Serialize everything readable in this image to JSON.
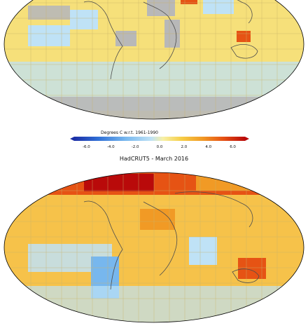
{
  "colorbar": {
    "title": "Degrees C w.r.t. 1961-1990",
    "ticks": [
      "-6.0",
      "-4.0",
      "-2.0",
      "0.0",
      "2.0",
      "4.0",
      "6.0"
    ],
    "tick_values": [
      -6,
      -4,
      -2,
      0,
      2,
      4,
      6
    ],
    "range": [
      -7,
      7
    ],
    "colors": [
      "#1c2fa6",
      "#2f6fd6",
      "#77b7ee",
      "#bfe2f6",
      "#f7f0a6",
      "#f6cd46",
      "#f19a25",
      "#e65314",
      "#b90a0a"
    ]
  },
  "top_map": {
    "caption": "",
    "land_color": "#8d8d8d",
    "missing_color": "#b8b8b8",
    "dominant_anomaly_color": "#f6e07a"
  },
  "bottom_map": {
    "caption": "HadCRUT5 - March 2016",
    "dominant_anomaly_color": "#f6c24a"
  },
  "colors": {
    "background": "#ffffff",
    "grid": "#c8b36a",
    "coast": "#4d4d4d",
    "outline": "#000000"
  }
}
